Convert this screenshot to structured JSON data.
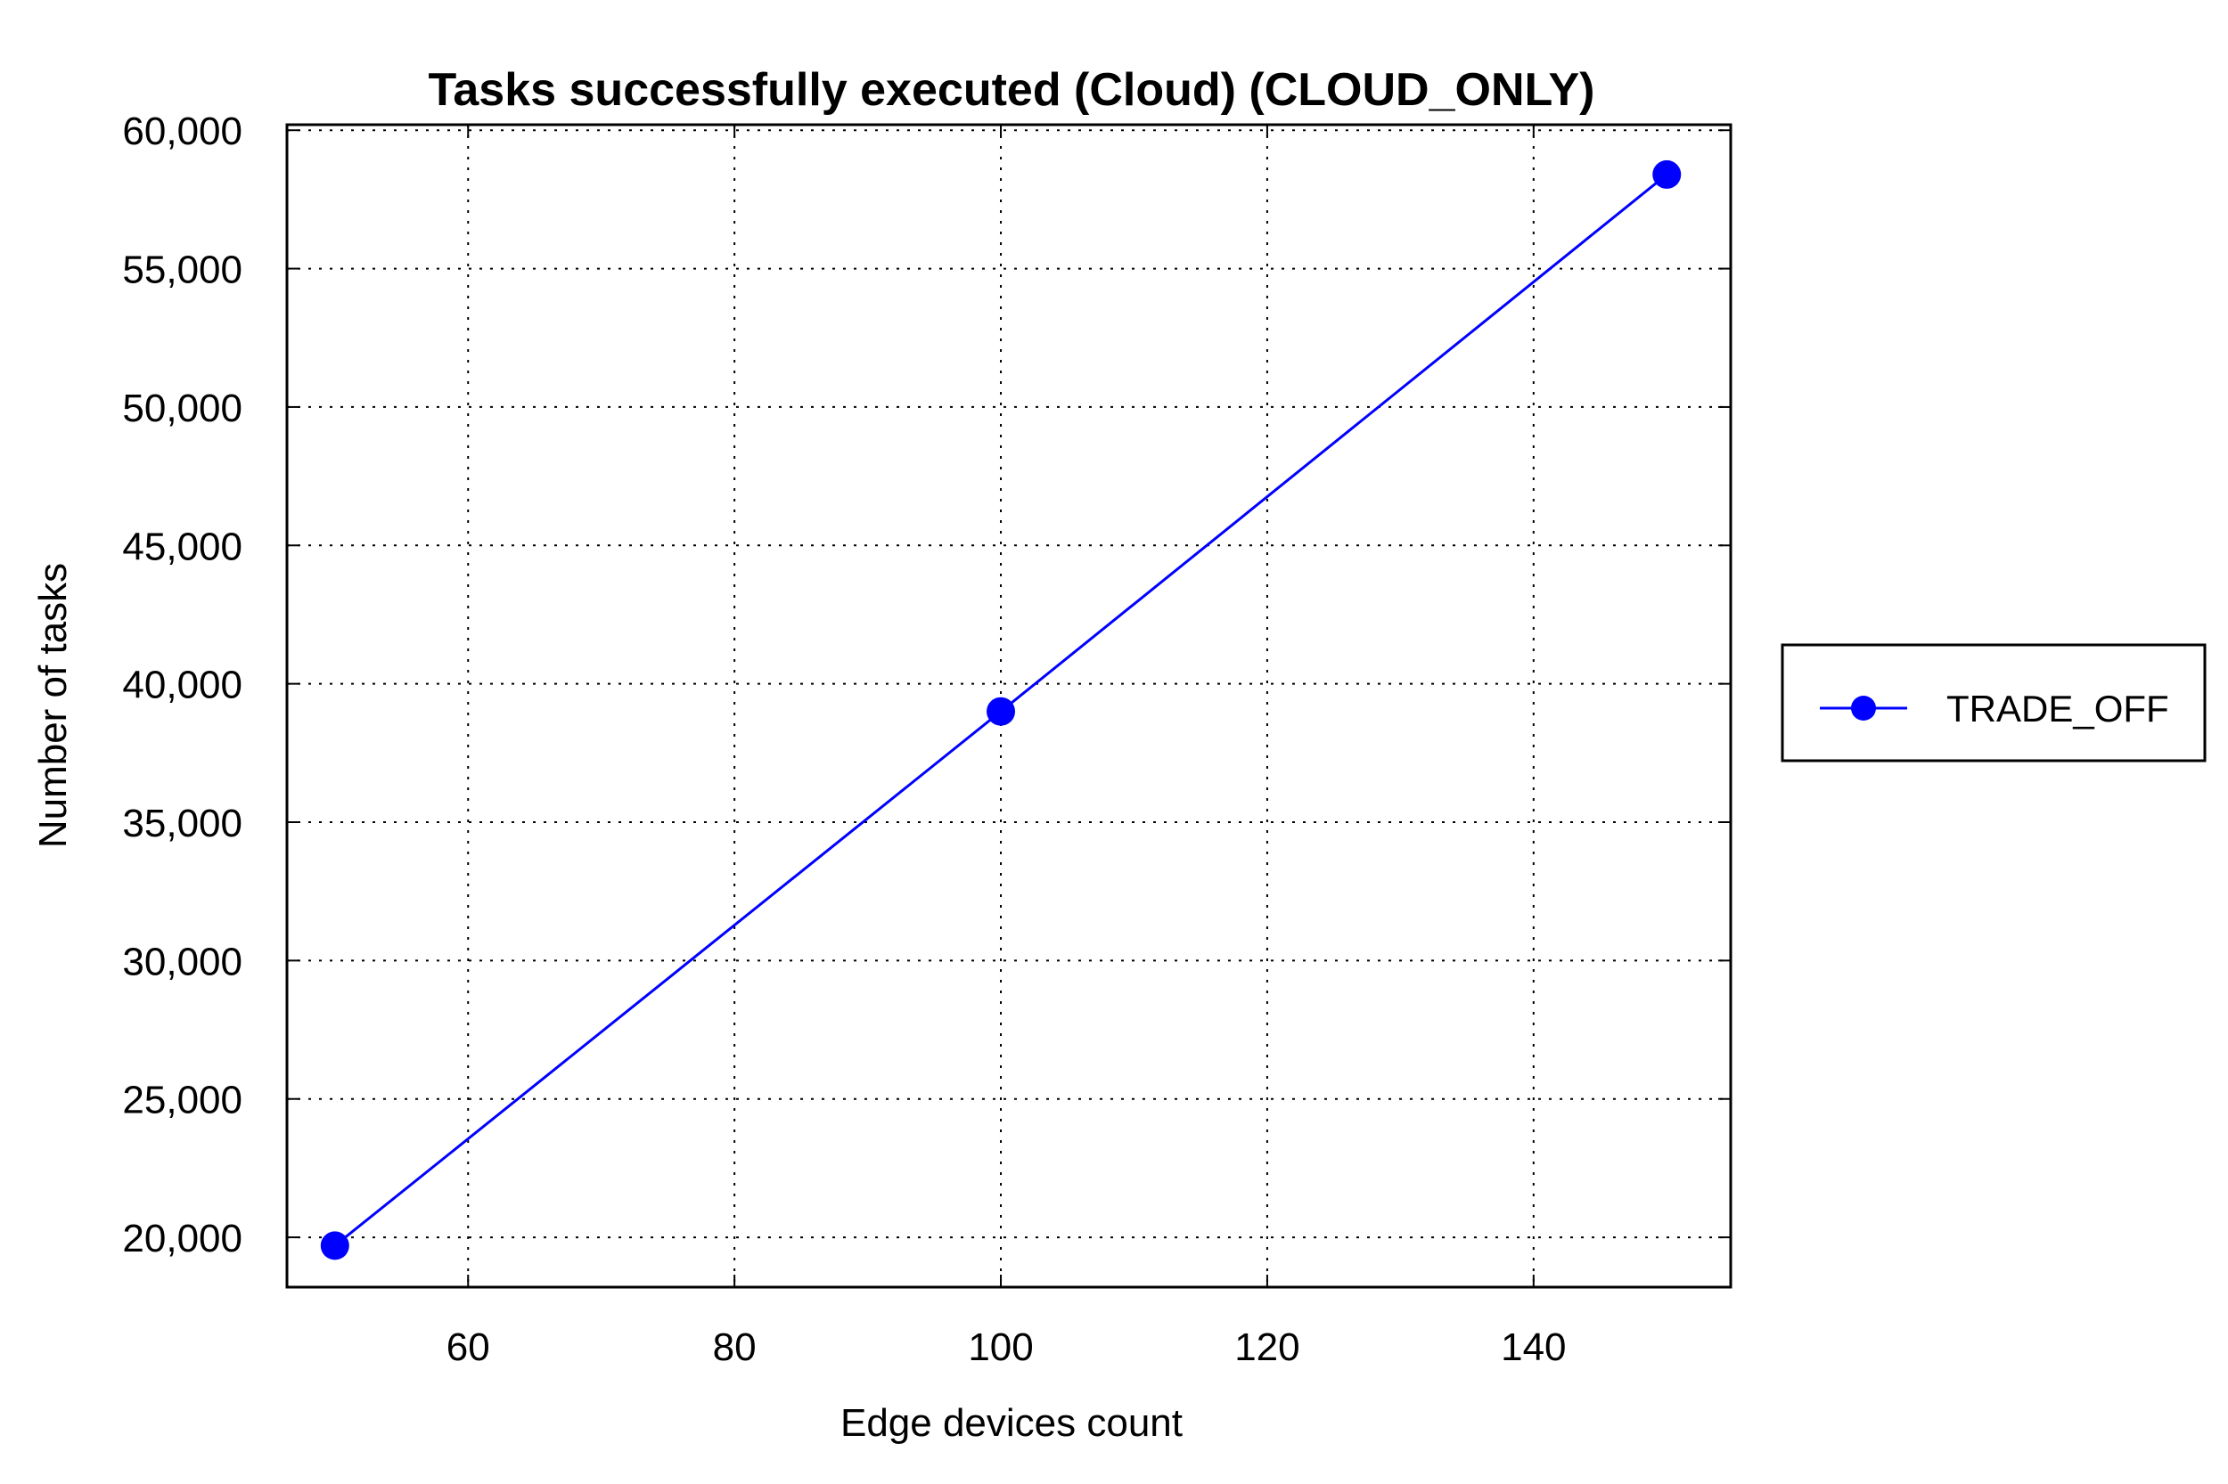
{
  "chart_data": {
    "type": "line",
    "title": "Tasks successfully executed (Cloud) (CLOUD_ONLY)",
    "xlabel": "Edge devices count",
    "ylabel": "Number of tasks",
    "xlim": [
      46.4,
      154.8
    ],
    "ylim": [
      18200,
      60200
    ],
    "x_ticks": [
      60,
      80,
      100,
      120,
      140
    ],
    "x_tick_labels": [
      "60",
      "80",
      "100",
      "120",
      "140"
    ],
    "y_ticks": [
      20000,
      25000,
      30000,
      35000,
      40000,
      45000,
      50000,
      55000,
      60000
    ],
    "y_tick_labels": [
      "20,000",
      "25,000",
      "30,000",
      "35,000",
      "40,000",
      "45,000",
      "50,000",
      "55,000",
      "60,000"
    ],
    "grid": true,
    "legend_position": "right",
    "series": [
      {
        "name": "TRADE_OFF",
        "color": "#0000ff",
        "marker": "circle",
        "x": [
          50,
          100,
          150
        ],
        "y": [
          19700,
          39000,
          58400
        ]
      }
    ]
  }
}
